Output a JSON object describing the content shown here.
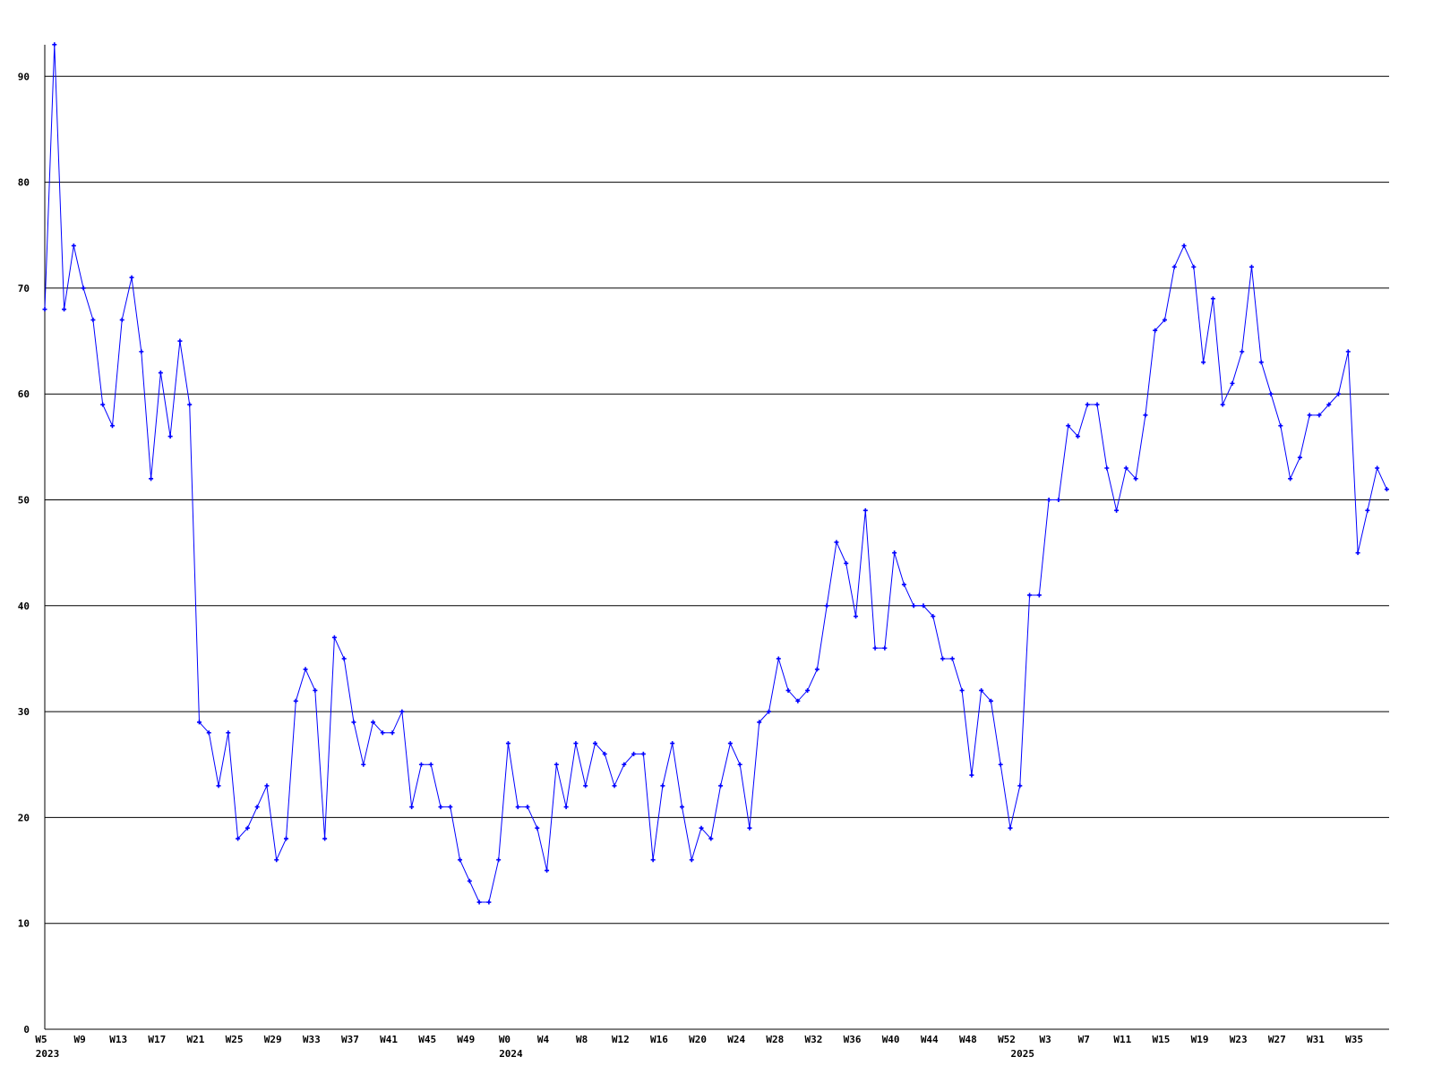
{
  "chart_data": {
    "type": "line",
    "title": "",
    "xlabel": "",
    "ylabel": "",
    "ylim": [
      0,
      93
    ],
    "y_ticks": [
      0,
      10,
      20,
      30,
      40,
      50,
      60,
      70,
      80,
      90
    ],
    "grid": "horizontal",
    "colors": {
      "line": "#0000ff",
      "grid": "#000000",
      "axis": "#000000",
      "text": "#000000"
    },
    "categories": [
      "W5",
      "W6",
      "W7",
      "W8",
      "W9",
      "W10",
      "W11",
      "W12",
      "W13",
      "W14",
      "W15",
      "W16",
      "W17",
      "W18",
      "W19",
      "W20",
      "W21",
      "W22",
      "W23",
      "W24",
      "W25",
      "W26",
      "W27",
      "W28",
      "W29",
      "W30",
      "W31",
      "W32",
      "W33",
      "W34",
      "W35",
      "W36",
      "W37",
      "W38",
      "W39",
      "W40",
      "W41",
      "W42",
      "W43",
      "W44",
      "W45",
      "W46",
      "W47",
      "W48",
      "W49",
      "W50",
      "W51",
      "W52",
      "W0",
      "W1",
      "W2",
      "W3",
      "W4",
      "W5",
      "W6",
      "W7",
      "W8",
      "W9",
      "W10",
      "W11",
      "W12",
      "W13",
      "W14",
      "W15",
      "W16",
      "W17",
      "W18",
      "W19",
      "W20",
      "W21",
      "W22",
      "W23",
      "W24",
      "W25",
      "W26",
      "W27",
      "W28",
      "W29",
      "W30",
      "W31",
      "W32",
      "W33",
      "W34",
      "W35",
      "W36",
      "W37",
      "W38",
      "W39",
      "W40",
      "W41",
      "W42",
      "W43",
      "W44",
      "W45",
      "W46",
      "W47",
      "W48",
      "W49",
      "W50",
      "W51",
      "W52",
      "W0",
      "W1",
      "W2",
      "W3",
      "W4",
      "W5",
      "W6",
      "W7",
      "W8",
      "W9",
      "W10",
      "W11",
      "W12",
      "W13",
      "W14",
      "W15",
      "W16",
      "W17",
      "W18",
      "W19",
      "W20",
      "W21",
      "W22",
      "W23",
      "W24",
      "W25",
      "W26",
      "W27",
      "W28",
      "W29",
      "W30",
      "W31",
      "W32",
      "W33",
      "W34",
      "W35",
      "W36",
      "W37",
      "W38"
    ],
    "tick_every": 4,
    "year_labels": [
      {
        "text": "2023",
        "index": 0
      },
      {
        "text": "2024",
        "index": 48
      },
      {
        "text": "2025",
        "index": 101
      }
    ],
    "series": [
      {
        "values": [
          68,
          93,
          68,
          74,
          70,
          67,
          59,
          57,
          67,
          71,
          64,
          52,
          62,
          56,
          65,
          59,
          29,
          28,
          23,
          28,
          18,
          19,
          21,
          23,
          16,
          18,
          31,
          34,
          32,
          18,
          37,
          35,
          29,
          25,
          29,
          28,
          28,
          30,
          21,
          25,
          25,
          21,
          21,
          16,
          14,
          12,
          12,
          16,
          27,
          21,
          21,
          19,
          15,
          25,
          21,
          27,
          23,
          27,
          26,
          23,
          25,
          26,
          26,
          16,
          23,
          27,
          21,
          16,
          19,
          18,
          23,
          27,
          25,
          19,
          29,
          30,
          35,
          32,
          31,
          32,
          34,
          40,
          46,
          44,
          39,
          49,
          36,
          36,
          45,
          42,
          40,
          40,
          39,
          35,
          35,
          32,
          24,
          32,
          31,
          25,
          19,
          23,
          41,
          41,
          50,
          50,
          57,
          56,
          59,
          59,
          53,
          49,
          53,
          52,
          58,
          66,
          67,
          72,
          74,
          72,
          63,
          69,
          59,
          61,
          64,
          72,
          63,
          60,
          57,
          52,
          54,
          58,
          58,
          59,
          60,
          64,
          45,
          49,
          53,
          51
        ]
      }
    ]
  }
}
